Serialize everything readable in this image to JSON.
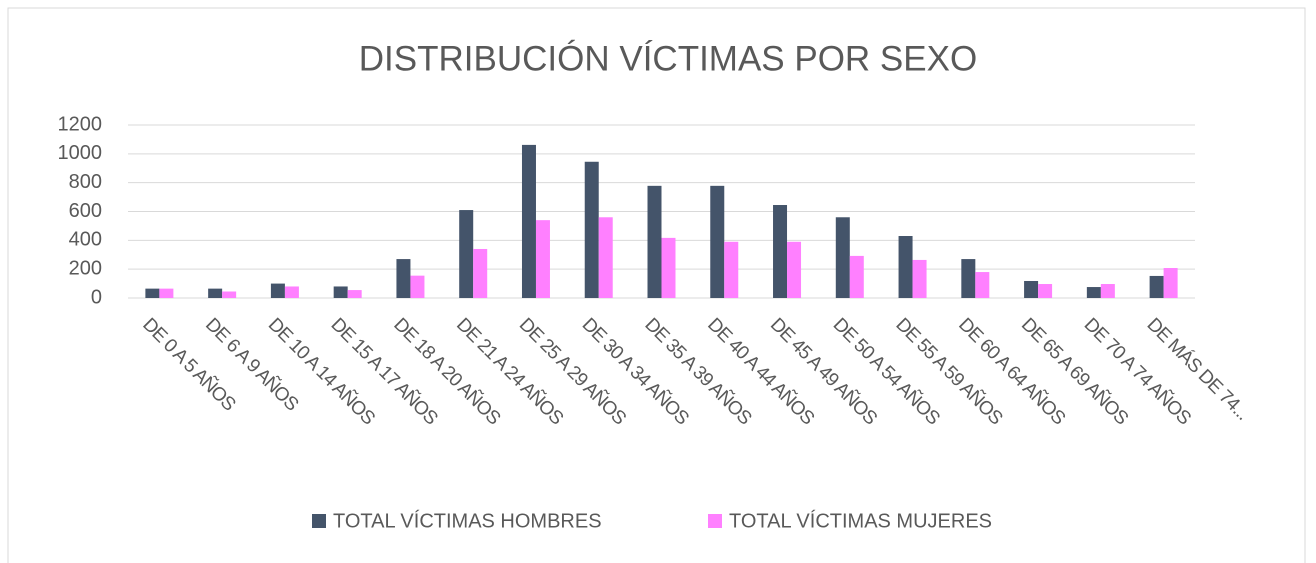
{
  "chart_data": {
    "type": "bar",
    "title": "DISTRIBUCIÓN VÍCTIMAS POR SEXO",
    "categories": [
      "DE 0 A 5 AÑOS",
      "DE 6 A 9 AÑOS",
      "DE 10 A 14 AÑOS",
      "DE 15 A 17 AÑOS",
      "DE 18 A 20 AÑOS",
      "DE 21 A 24 AÑOS",
      "DE 25 A 29 AÑOS",
      "DE 30 A 34 AÑOS",
      "DE 35 A 39 AÑOS",
      "DE 40 A 44 AÑOS",
      "DE 45 A 49 AÑOS",
      "DE 50 A 54 AÑOS",
      "DE 55 A 59 AÑOS",
      "DE 60 A 64 AÑOS",
      "DE 65 A 69 AÑOS",
      "DE 70 A 74 AÑOS",
      "DE MÁS DE 74..."
    ],
    "series": [
      {
        "name": "TOTAL VÍCTIMAS HOMBRES",
        "color": "#44546a",
        "values": [
          65,
          65,
          100,
          80,
          270,
          610,
          1062,
          945,
          778,
          778,
          645,
          560,
          430,
          270,
          118,
          76,
          153
        ]
      },
      {
        "name": "TOTAL VÍCTIMAS MUJERES",
        "color": "#ff80ff",
        "values": [
          65,
          45,
          80,
          55,
          155,
          340,
          540,
          560,
          417,
          390,
          390,
          292,
          264,
          180,
          97,
          97,
          208
        ]
      }
    ],
    "ylim": [
      0,
      1200
    ],
    "yticks": [
      0,
      200,
      400,
      600,
      800,
      1000,
      1200
    ],
    "grid": true,
    "legend": "bottom"
  }
}
